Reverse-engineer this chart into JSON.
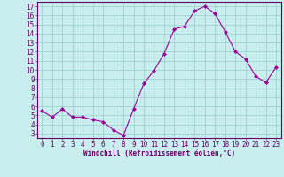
{
  "x": [
    0,
    1,
    2,
    3,
    4,
    5,
    6,
    7,
    8,
    9,
    10,
    11,
    12,
    13,
    14,
    15,
    16,
    17,
    18,
    19,
    20,
    21,
    22,
    23
  ],
  "y": [
    5.5,
    4.8,
    5.7,
    4.8,
    4.8,
    4.5,
    4.3,
    3.4,
    2.8,
    5.7,
    8.5,
    9.9,
    11.8,
    14.5,
    14.8,
    16.5,
    17.0,
    16.2,
    14.2,
    12.0,
    11.2,
    9.3,
    8.6,
    10.3
  ],
  "line_color": "#990099",
  "marker": "D",
  "marker_size": 2.0,
  "bg_color": "#c9eeee",
  "grid_color": "#99cccc",
  "xlabel": "Windchill (Refroidissement éolien,°C)",
  "xlabel_color": "#660066",
  "tick_color": "#660066",
  "axis_color": "#660066",
  "yticks": [
    3,
    4,
    5,
    6,
    7,
    8,
    9,
    10,
    11,
    12,
    13,
    14,
    15,
    16,
    17
  ],
  "xticks": [
    0,
    1,
    2,
    3,
    4,
    5,
    6,
    7,
    8,
    9,
    10,
    11,
    12,
    13,
    14,
    15,
    16,
    17,
    18,
    19,
    20,
    21,
    22,
    23
  ],
  "ylim": [
    2.5,
    17.5
  ],
  "xlim": [
    -0.5,
    23.5
  ],
  "label_fontsize": 5.5,
  "tick_fontsize": 5.5
}
